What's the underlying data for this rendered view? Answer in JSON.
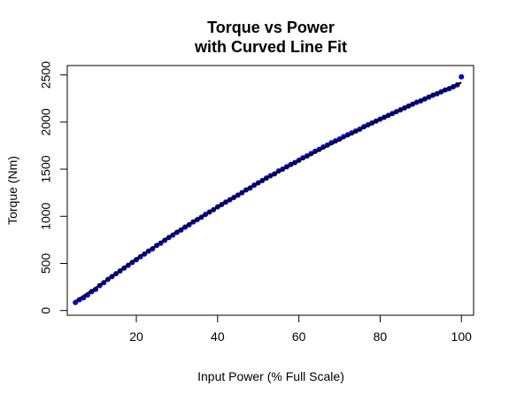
{
  "chart_data": {
    "type": "scatter",
    "title": "Torque vs Power",
    "subtitle": "with Curved Line Fit",
    "xlabel": "Input Power (% Full Scale)",
    "ylabel": "Torque (Nm)",
    "xlim": [
      3,
      103
    ],
    "ylim": [
      -50,
      2600
    ],
    "xticks": [
      20,
      40,
      60,
      80,
      100
    ],
    "xtick_labels": [
      "20",
      "40",
      "60",
      "80",
      "100"
    ],
    "yticks": [
      0,
      500,
      1000,
      1500,
      2000,
      2500
    ],
    "ytick_labels": [
      "0",
      "500",
      "1000",
      "1500",
      "2000",
      "2500"
    ],
    "grid": false,
    "legend": "none",
    "point_color": "#0000ff",
    "point_edge_color": "#00008b",
    "line_color": "#000000",
    "series": [
      {
        "style": "points",
        "x": [
          5.0,
          6.0,
          7.0,
          8.0,
          9.0,
          10.0,
          11.0,
          12.0,
          13.0,
          14.0,
          15.0,
          16.0,
          17.0,
          18.0,
          19.0,
          20.0,
          21.0,
          22.0,
          23.0,
          24.0,
          25.0,
          26.0,
          27.0,
          28.0,
          29.0,
          30.0,
          31.0,
          32.0,
          33.0,
          34.0,
          35.0,
          36.0,
          37.0,
          38.0,
          39.0,
          40.0,
          41.0,
          42.0,
          43.0,
          44.0,
          45.0,
          46.0,
          47.0,
          48.0,
          49.0,
          50.0,
          51.0,
          52.0,
          53.0,
          54.0,
          55.0,
          56.0,
          57.0,
          58.0,
          59.0,
          60.0,
          61.0,
          62.0,
          63.0,
          64.0,
          65.0,
          66.0,
          67.0,
          68.0,
          69.0,
          70.0,
          71.0,
          72.0,
          73.0,
          74.0,
          75.0,
          76.0,
          77.0,
          78.0,
          79.0,
          80.0,
          81.0,
          82.0,
          83.0,
          84.0,
          85.0,
          86.0,
          87.0,
          88.0,
          89.0,
          90.0,
          91.0,
          92.0,
          93.0,
          94.0,
          95.0,
          96.0,
          97.0,
          98.0,
          99.0,
          100.0
        ],
        "y": [
          85,
          115,
          135,
          165,
          200,
          225,
          265,
          295,
          330,
          360,
          390,
          420,
          450,
          480,
          510,
          540,
          570,
          600,
          630,
          655,
          690,
          715,
          745,
          775,
          800,
          830,
          855,
          885,
          910,
          940,
          965,
          990,
          1020,
          1045,
          1070,
          1100,
          1125,
          1150,
          1175,
          1200,
          1225,
          1250,
          1280,
          1300,
          1330,
          1355,
          1380,
          1405,
          1430,
          1450,
          1480,
          1500,
          1525,
          1550,
          1570,
          1595,
          1620,
          1640,
          1665,
          1690,
          1710,
          1735,
          1755,
          1780,
          1800,
          1820,
          1845,
          1865,
          1885,
          1905,
          1925,
          1950,
          1970,
          1990,
          2010,
          2030,
          2050,
          2070,
          2090,
          2110,
          2130,
          2150,
          2170,
          2190,
          2210,
          2225,
          2245,
          2265,
          2285,
          2300,
          2320,
          2340,
          2355,
          2375,
          2395,
          2480
        ]
      },
      {
        "style": "line",
        "x": [
          5,
          10,
          20,
          30,
          40,
          50,
          60,
          70,
          80,
          90,
          100
        ],
        "y": [
          100,
          240,
          550,
          840,
          1100,
          1355,
          1590,
          1810,
          2030,
          2230,
          2420
        ]
      }
    ]
  }
}
